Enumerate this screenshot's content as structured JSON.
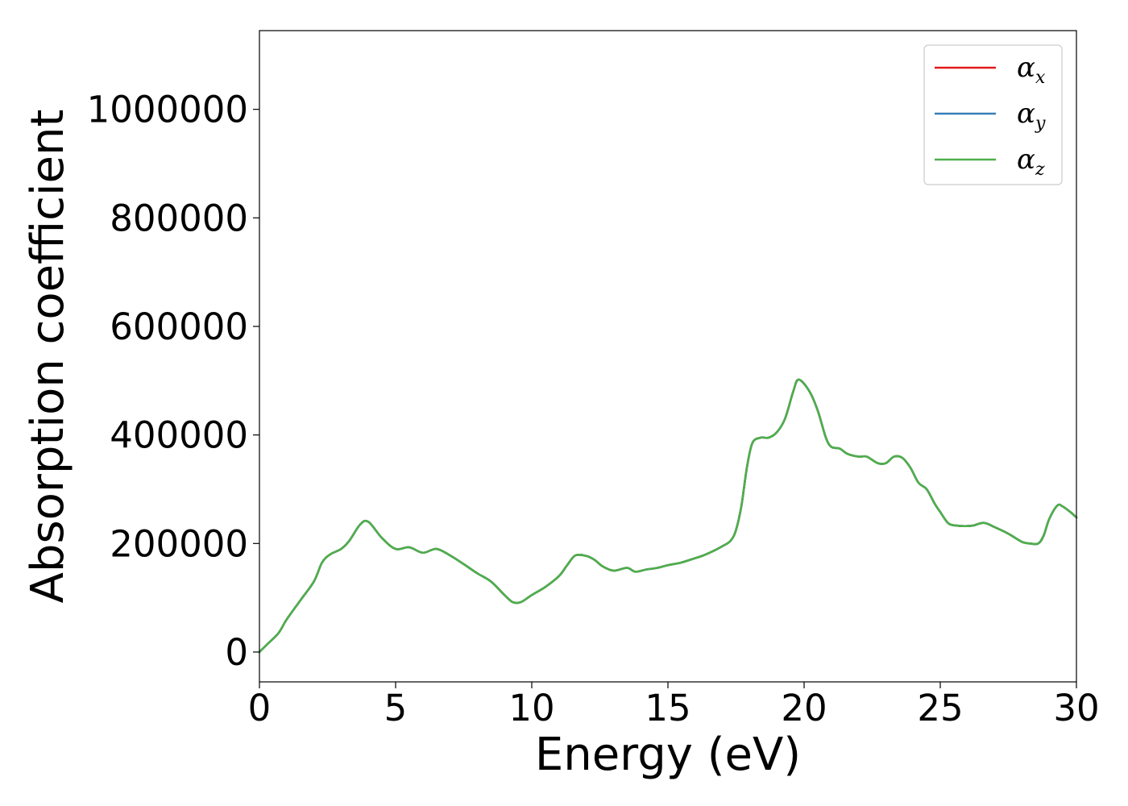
{
  "chart_data": {
    "type": "line",
    "xlabel": "Energy (eV)",
    "ylabel": "Absorption coefficient",
    "xlim": [
      0,
      30
    ],
    "ylim": [
      -55000,
      1145000
    ],
    "x_ticks": [
      "0",
      "5",
      "10",
      "15",
      "20",
      "25",
      "30"
    ],
    "x_tick_values": [
      0,
      5,
      10,
      15,
      20,
      25,
      30
    ],
    "y_ticks": [
      "0",
      "200000",
      "400000",
      "600000",
      "800000",
      "1000000"
    ],
    "y_tick_values": [
      0,
      200000,
      400000,
      600000,
      800000,
      1000000
    ],
    "grid": false,
    "legend_placement": "top-right",
    "x": [
      0,
      0.3,
      0.7,
      1,
      1.5,
      2,
      2.3,
      2.6,
      3,
      3.3,
      3.7,
      4,
      4.5,
      5,
      5.5,
      6,
      6.5,
      7,
      7.5,
      8,
      8.5,
      9,
      9.3,
      9.6,
      10,
      10.5,
      11,
      11.3,
      11.6,
      12,
      12.3,
      12.6,
      13,
      13.5,
      13.8,
      14.2,
      14.6,
      15,
      15.5,
      16,
      16.3,
      16.7,
      17,
      17.3,
      17.5,
      17.7,
      17.9,
      18.1,
      18.4,
      18.7,
      19,
      19.3,
      19.6,
      19.8,
      20.2,
      20.5,
      20.8,
      21,
      21.3,
      21.6,
      22,
      22.3,
      22.7,
      23,
      23.3,
      23.6,
      23.9,
      24.2,
      24.5,
      24.8,
      25,
      25.3,
      25.6,
      25.9,
      26.2,
      26.6,
      27,
      27.5,
      28,
      28.3,
      28.6,
      28.8,
      29,
      29.3,
      29.5,
      29.8,
      30
    ],
    "series": [
      {
        "name": "α",
        "name_sub": "x",
        "color": "#e41a1c",
        "y": [
          0,
          15000,
          35000,
          60000,
          95000,
          130000,
          165000,
          180000,
          190000,
          205000,
          235000,
          240000,
          210000,
          190000,
          193000,
          183000,
          190000,
          178000,
          162000,
          145000,
          130000,
          105000,
          92000,
          92000,
          105000,
          120000,
          140000,
          160000,
          178000,
          177000,
          170000,
          158000,
          150000,
          155000,
          148000,
          152000,
          155000,
          160000,
          165000,
          173000,
          178000,
          187000,
          195000,
          205000,
          225000,
          270000,
          340000,
          385000,
          395000,
          395000,
          405000,
          430000,
          480000,
          502000,
          480000,
          445000,
          395000,
          378000,
          375000,
          365000,
          360000,
          360000,
          348000,
          348000,
          360000,
          358000,
          340000,
          312000,
          300000,
          273000,
          258000,
          237000,
          233000,
          232000,
          233000,
          238000,
          230000,
          218000,
          203000,
          200000,
          200000,
          215000,
          245000,
          270000,
          268000,
          257000,
          248000
        ]
      },
      {
        "name": "α",
        "name_sub": "y",
        "color": "#377eb8",
        "y": [
          0,
          15000,
          35000,
          60000,
          95000,
          130000,
          165000,
          180000,
          190000,
          205000,
          235000,
          240000,
          210000,
          190000,
          193000,
          183000,
          190000,
          178000,
          162000,
          145000,
          130000,
          105000,
          92000,
          92000,
          105000,
          120000,
          140000,
          160000,
          178000,
          177000,
          170000,
          158000,
          150000,
          155000,
          148000,
          152000,
          155000,
          160000,
          165000,
          173000,
          178000,
          187000,
          195000,
          205000,
          225000,
          270000,
          340000,
          385000,
          395000,
          395000,
          405000,
          430000,
          480000,
          502000,
          480000,
          445000,
          395000,
          378000,
          375000,
          365000,
          360000,
          360000,
          348000,
          348000,
          360000,
          358000,
          340000,
          312000,
          300000,
          273000,
          258000,
          237000,
          233000,
          232000,
          233000,
          238000,
          230000,
          218000,
          203000,
          200000,
          200000,
          215000,
          245000,
          270000,
          268000,
          257000,
          248000
        ]
      },
      {
        "name": "α",
        "name_sub": "z",
        "color": "#4daf4a",
        "y": [
          0,
          15000,
          35000,
          60000,
          95000,
          130000,
          165000,
          180000,
          190000,
          205000,
          235000,
          240000,
          210000,
          190000,
          193000,
          183000,
          190000,
          178000,
          162000,
          145000,
          130000,
          105000,
          92000,
          92000,
          105000,
          120000,
          140000,
          160000,
          178000,
          177000,
          170000,
          158000,
          150000,
          155000,
          148000,
          152000,
          155000,
          160000,
          165000,
          173000,
          178000,
          187000,
          195000,
          205000,
          225000,
          270000,
          340000,
          385000,
          395000,
          395000,
          405000,
          430000,
          480000,
          502000,
          480000,
          445000,
          395000,
          378000,
          375000,
          365000,
          360000,
          360000,
          348000,
          348000,
          360000,
          358000,
          340000,
          312000,
          300000,
          273000,
          258000,
          237000,
          233000,
          232000,
          233000,
          238000,
          230000,
          218000,
          203000,
          200000,
          200000,
          215000,
          245000,
          270000,
          268000,
          257000,
          248000
        ]
      }
    ]
  }
}
